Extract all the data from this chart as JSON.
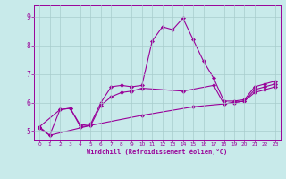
{
  "xlabel": "Windchill (Refroidissement éolien,°C)",
  "xlim": [
    -0.5,
    23.5
  ],
  "ylim": [
    4.7,
    9.4
  ],
  "xticks": [
    0,
    1,
    2,
    3,
    4,
    5,
    6,
    7,
    8,
    9,
    10,
    11,
    12,
    13,
    14,
    15,
    16,
    17,
    18,
    19,
    20,
    21,
    22,
    23
  ],
  "yticks": [
    5,
    6,
    7,
    8,
    9
  ],
  "bg_color": "#c8eaea",
  "line_color": "#990099",
  "grid_color": "#a8cccc",
  "curve1_x": [
    0,
    1,
    2,
    3,
    4,
    5,
    6,
    7,
    8,
    9,
    10,
    11,
    12,
    13,
    14,
    15,
    16,
    17,
    18,
    19,
    20,
    21,
    22,
    23
  ],
  "curve1_y": [
    5.15,
    4.85,
    5.75,
    5.8,
    5.2,
    5.25,
    6.0,
    6.55,
    6.6,
    6.55,
    6.6,
    8.15,
    8.65,
    8.55,
    8.95,
    8.2,
    7.45,
    6.85,
    6.05,
    6.05,
    6.1,
    6.55,
    6.65,
    6.75
  ],
  "curve2_x": [
    0,
    2,
    3,
    4,
    5,
    6,
    7,
    8,
    9,
    10,
    14,
    17,
    18,
    19,
    20,
    21,
    22,
    23
  ],
  "curve2_y": [
    5.15,
    5.75,
    5.8,
    5.15,
    5.2,
    5.9,
    6.2,
    6.35,
    6.4,
    6.5,
    6.4,
    6.6,
    5.95,
    6.0,
    6.05,
    6.45,
    6.55,
    6.65
  ],
  "curve3_x": [
    0,
    1,
    5,
    10,
    15,
    18,
    19,
    20,
    21,
    22,
    23
  ],
  "curve3_y": [
    5.1,
    4.85,
    5.2,
    5.55,
    5.85,
    5.95,
    6.0,
    6.05,
    6.35,
    6.45,
    6.55
  ]
}
